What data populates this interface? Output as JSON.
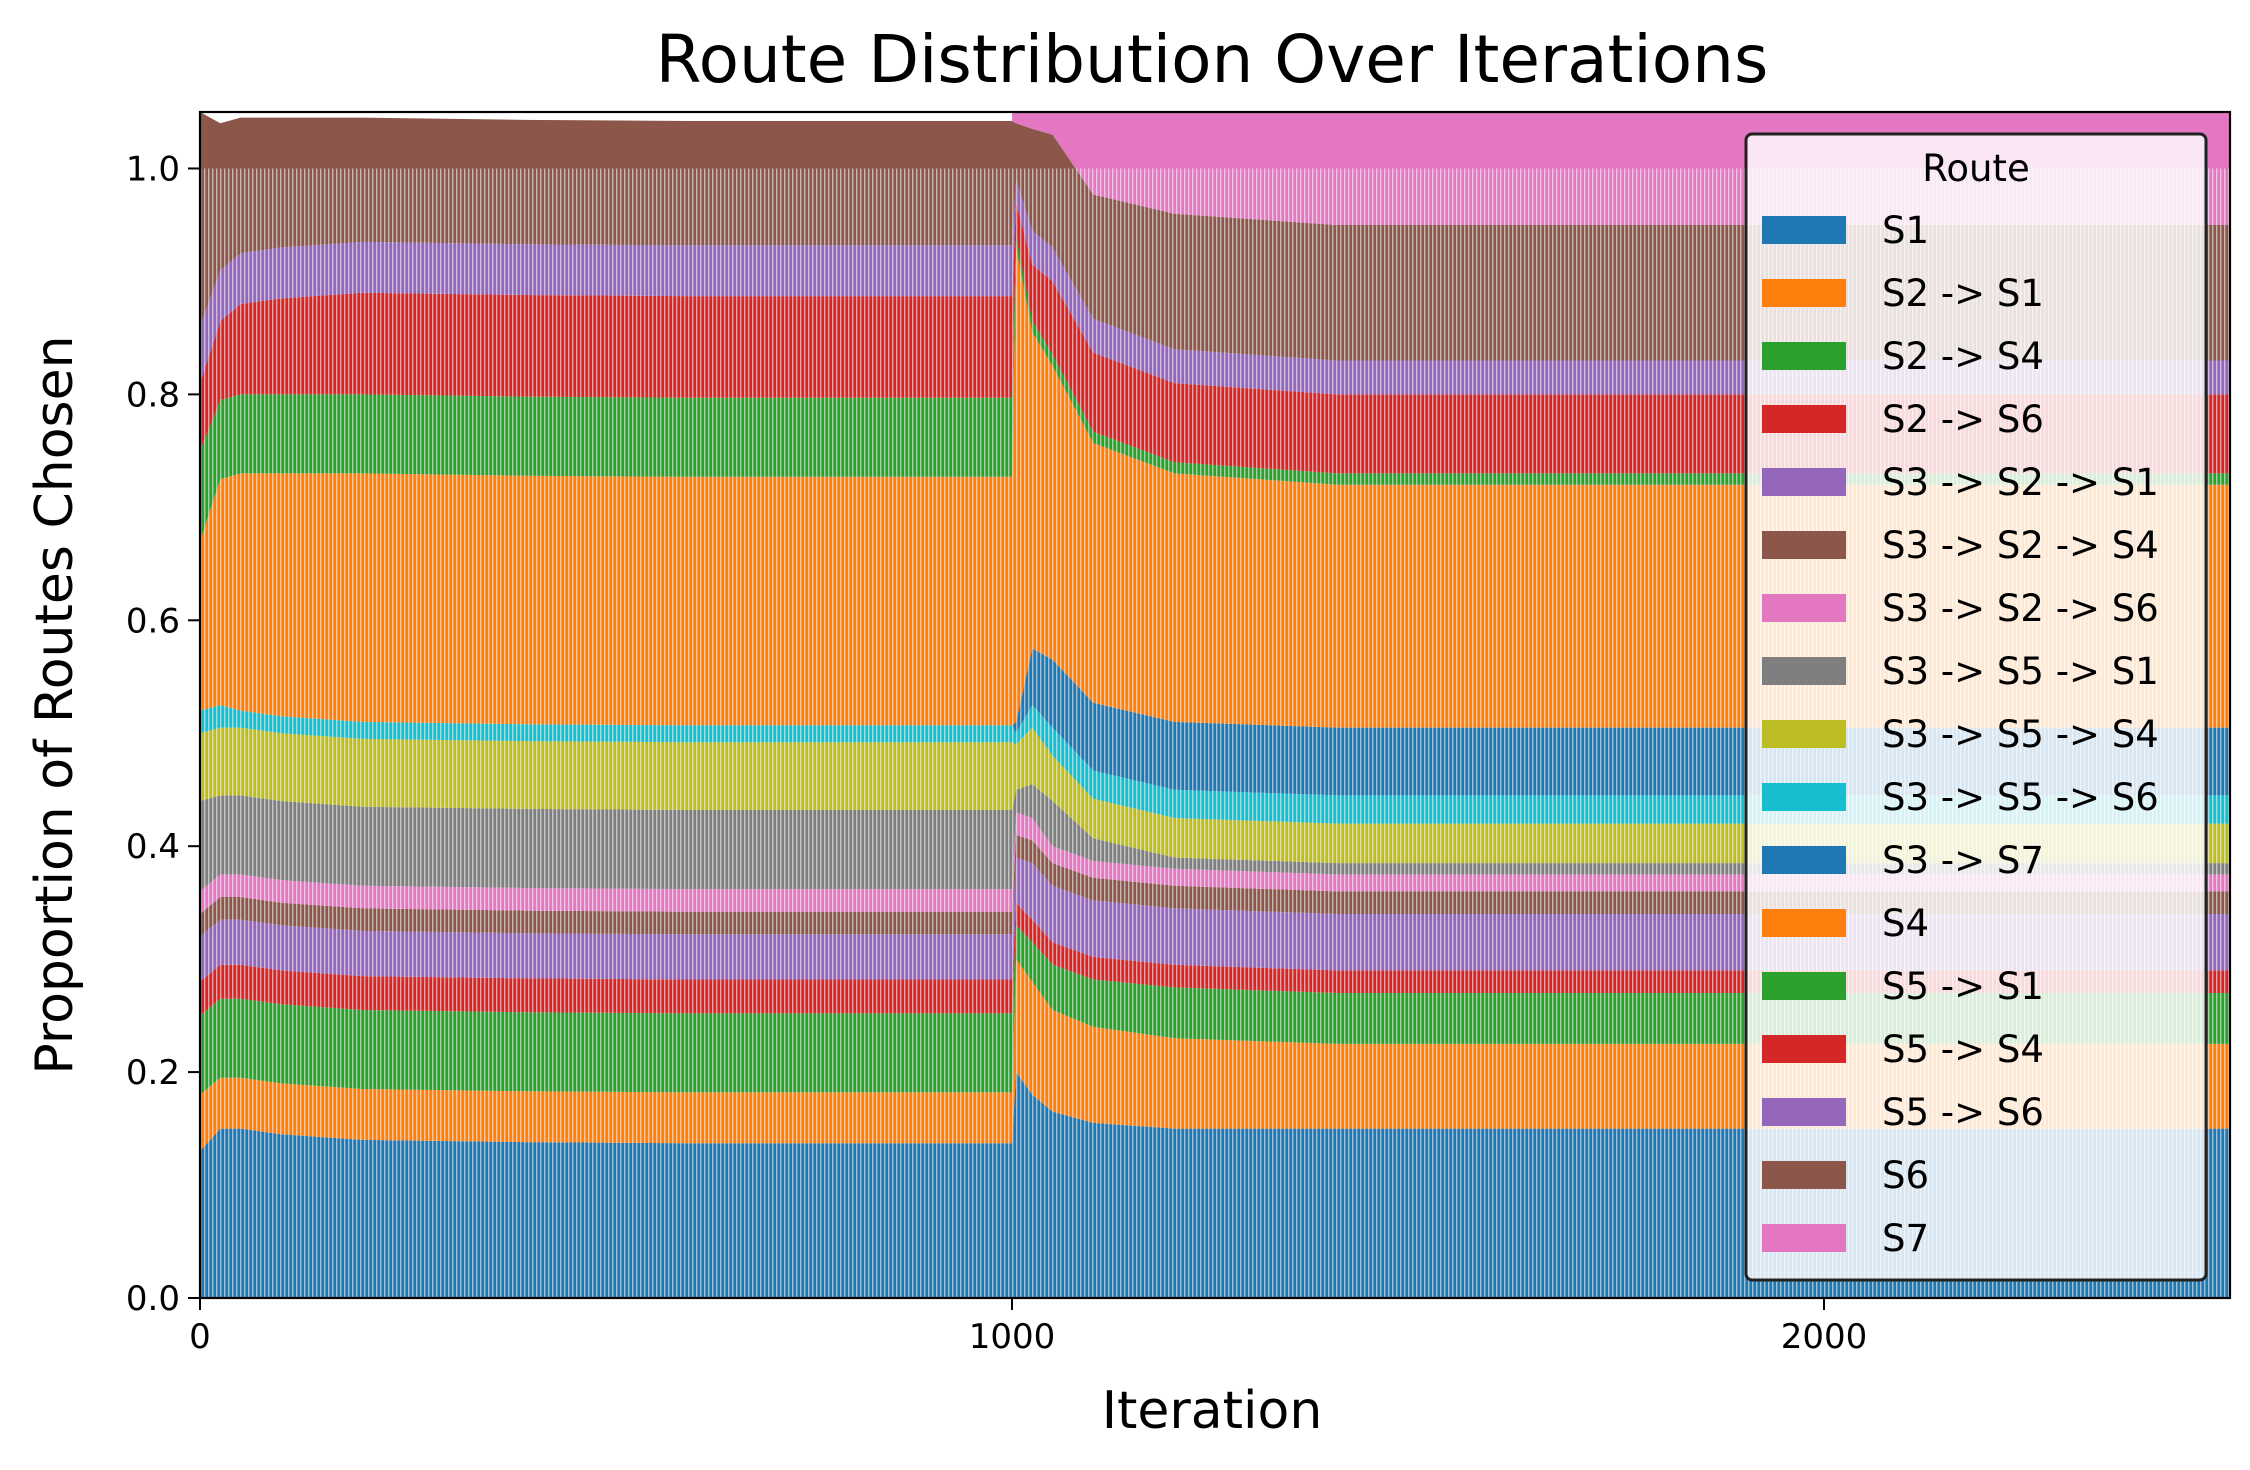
{
  "chart_data": {
    "type": "bar",
    "subtype": "stacked-100",
    "title": "Route Distribution Over Iterations",
    "xlabel": "Iteration",
    "ylabel": "Proportion of Routes Chosen",
    "xlim": [
      0,
      2500
    ],
    "ylim": [
      0,
      1.05
    ],
    "xticks": [
      0,
      1000,
      2000
    ],
    "xtick_labels": [
      "0",
      "1000",
      "2000"
    ],
    "yticks": [
      0.0,
      0.2,
      0.4,
      0.6,
      0.8,
      1.0
    ],
    "ytick_labels": [
      "0.0",
      "0.2",
      "0.4",
      "0.6",
      "0.8",
      "1.0"
    ],
    "grid": false,
    "legend": {
      "title": "Route",
      "placement": "top-right"
    },
    "x": [
      0,
      25,
      50,
      100,
      200,
      400,
      600,
      800,
      1000,
      1005,
      1025,
      1050,
      1100,
      1200,
      1400,
      1600,
      1800,
      2000,
      2200,
      2400,
      2500
    ],
    "series": [
      {
        "name": "S1",
        "color": "#1f77b4",
        "values": [
          0.13,
          0.15,
          0.15,
          0.145,
          0.14,
          0.138,
          0.137,
          0.137,
          0.137,
          0.2,
          0.18,
          0.165,
          0.155,
          0.15,
          0.15,
          0.15,
          0.15,
          0.15,
          0.15,
          0.15,
          0.15
        ]
      },
      {
        "name": "S2 -> S1",
        "color": "#ff7f0e",
        "values": [
          0.05,
          0.045,
          0.045,
          0.045,
          0.045,
          0.045,
          0.045,
          0.045,
          0.045,
          0.1,
          0.1,
          0.09,
          0.085,
          0.08,
          0.075,
          0.075,
          0.075,
          0.075,
          0.075,
          0.075,
          0.075
        ]
      },
      {
        "name": "S2 -> S4",
        "color": "#2ca02c",
        "values": [
          0.07,
          0.07,
          0.07,
          0.07,
          0.07,
          0.07,
          0.07,
          0.07,
          0.07,
          0.03,
          0.035,
          0.04,
          0.042,
          0.045,
          0.045,
          0.045,
          0.045,
          0.045,
          0.045,
          0.045,
          0.045
        ]
      },
      {
        "name": "S2 -> S6",
        "color": "#d62728",
        "values": [
          0.03,
          0.03,
          0.03,
          0.03,
          0.03,
          0.03,
          0.03,
          0.03,
          0.03,
          0.02,
          0.02,
          0.02,
          0.02,
          0.02,
          0.02,
          0.02,
          0.02,
          0.02,
          0.02,
          0.02,
          0.02
        ]
      },
      {
        "name": "S3 -> S2 -> S1",
        "color": "#9467bd",
        "values": [
          0.04,
          0.04,
          0.04,
          0.04,
          0.04,
          0.04,
          0.04,
          0.04,
          0.04,
          0.04,
          0.05,
          0.05,
          0.05,
          0.05,
          0.05,
          0.05,
          0.05,
          0.05,
          0.05,
          0.05,
          0.05
        ]
      },
      {
        "name": "S3 -> S2 -> S4",
        "color": "#8c564b",
        "values": [
          0.02,
          0.02,
          0.02,
          0.02,
          0.02,
          0.02,
          0.02,
          0.02,
          0.02,
          0.02,
          0.02,
          0.02,
          0.02,
          0.02,
          0.02,
          0.02,
          0.02,
          0.02,
          0.02,
          0.02,
          0.02
        ]
      },
      {
        "name": "S3 -> S2 -> S6",
        "color": "#e377c2",
        "values": [
          0.02,
          0.02,
          0.02,
          0.02,
          0.02,
          0.02,
          0.02,
          0.02,
          0.02,
          0.02,
          0.02,
          0.015,
          0.015,
          0.015,
          0.015,
          0.015,
          0.015,
          0.015,
          0.015,
          0.015,
          0.015
        ]
      },
      {
        "name": "S3 -> S5 -> S1",
        "color": "#7f7f7f",
        "values": [
          0.08,
          0.07,
          0.07,
          0.07,
          0.07,
          0.07,
          0.07,
          0.07,
          0.07,
          0.02,
          0.03,
          0.04,
          0.02,
          0.01,
          0.01,
          0.01,
          0.01,
          0.01,
          0.01,
          0.01,
          0.01
        ]
      },
      {
        "name": "S3 -> S5 -> S4",
        "color": "#bcbd22",
        "values": [
          0.06,
          0.06,
          0.06,
          0.06,
          0.06,
          0.06,
          0.06,
          0.06,
          0.06,
          0.04,
          0.05,
          0.04,
          0.035,
          0.035,
          0.035,
          0.035,
          0.035,
          0.035,
          0.035,
          0.035,
          0.035
        ]
      },
      {
        "name": "S3 -> S5 -> S6",
        "color": "#17becf",
        "values": [
          0.02,
          0.02,
          0.015,
          0.015,
          0.015,
          0.015,
          0.015,
          0.015,
          0.015,
          0.01,
          0.02,
          0.025,
          0.025,
          0.025,
          0.025,
          0.025,
          0.025,
          0.025,
          0.025,
          0.025,
          0.025
        ]
      },
      {
        "name": "S3 -> S7",
        "color": "#1f77b4",
        "values": [
          0.0,
          0.0,
          0.0,
          0.0,
          0.0,
          0.0,
          0.0,
          0.0,
          0.0,
          0.01,
          0.05,
          0.06,
          0.06,
          0.06,
          0.06,
          0.06,
          0.06,
          0.06,
          0.06,
          0.06,
          0.06
        ]
      },
      {
        "name": "S4",
        "color": "#ff7f0e",
        "values": [
          0.15,
          0.2,
          0.21,
          0.215,
          0.22,
          0.22,
          0.22,
          0.22,
          0.22,
          0.42,
          0.28,
          0.26,
          0.23,
          0.22,
          0.215,
          0.215,
          0.215,
          0.215,
          0.215,
          0.215,
          0.215
        ]
      },
      {
        "name": "S5 -> S1",
        "color": "#2ca02c",
        "values": [
          0.08,
          0.07,
          0.07,
          0.07,
          0.07,
          0.07,
          0.07,
          0.07,
          0.07,
          0.01,
          0.01,
          0.01,
          0.01,
          0.01,
          0.01,
          0.01,
          0.01,
          0.01,
          0.01,
          0.01,
          0.01
        ]
      },
      {
        "name": "S5 -> S4",
        "color": "#d62728",
        "values": [
          0.06,
          0.07,
          0.08,
          0.085,
          0.09,
          0.09,
          0.09,
          0.09,
          0.09,
          0.03,
          0.05,
          0.065,
          0.07,
          0.07,
          0.07,
          0.07,
          0.07,
          0.07,
          0.07,
          0.07,
          0.07
        ]
      },
      {
        "name": "S5 -> S6",
        "color": "#9467bd",
        "values": [
          0.05,
          0.045,
          0.045,
          0.045,
          0.045,
          0.045,
          0.045,
          0.045,
          0.045,
          0.02,
          0.03,
          0.03,
          0.03,
          0.03,
          0.03,
          0.03,
          0.03,
          0.03,
          0.03,
          0.03,
          0.03
        ]
      },
      {
        "name": "S6",
        "color": "#8c564b",
        "values": [
          0.19,
          0.13,
          0.12,
          0.115,
          0.11,
          0.11,
          0.11,
          0.11,
          0.11,
          0.05,
          0.09,
          0.1,
          0.11,
          0.12,
          0.12,
          0.12,
          0.12,
          0.12,
          0.12,
          0.12,
          0.12
        ]
      },
      {
        "name": "S7",
        "color": "#e377c2",
        "values": [
          0.0,
          0.0,
          0.0,
          0.0,
          0.0,
          0.0,
          0.0,
          0.0,
          0.0,
          0.15,
          0.14,
          0.12,
          0.115,
          0.115,
          0.115,
          0.115,
          0.115,
          0.115,
          0.115,
          0.115,
          0.115
        ]
      }
    ]
  }
}
